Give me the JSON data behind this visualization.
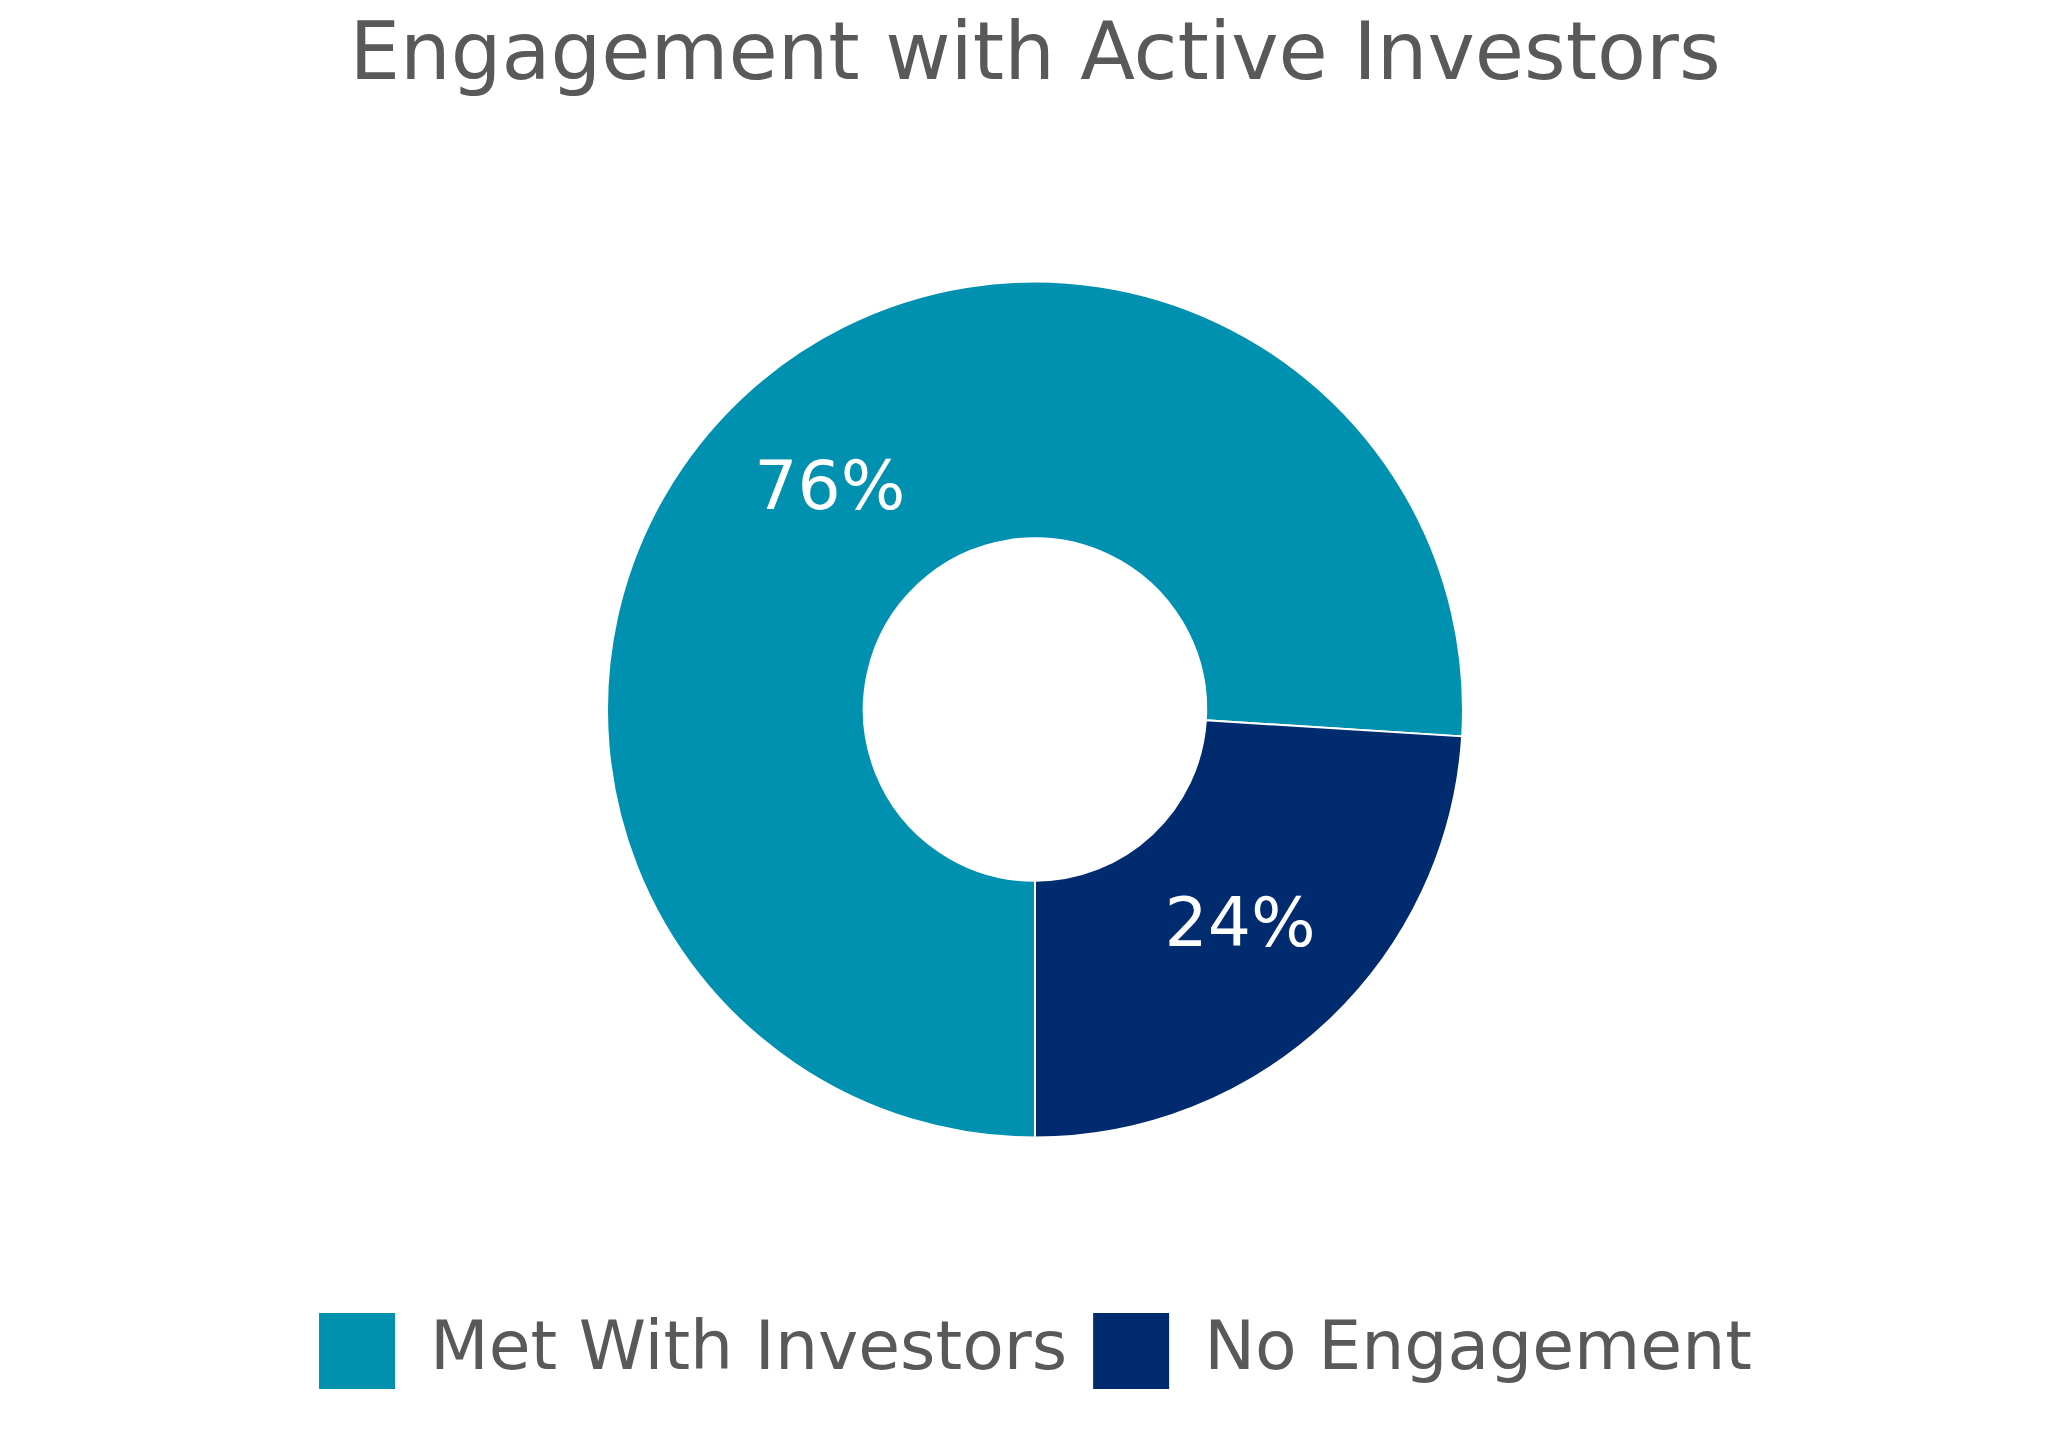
{
  "chart_data": {
    "type": "donut",
    "title": "Engagement with Active Investors",
    "categories": [
      "Met With Investors",
      "No Engagement"
    ],
    "values": [
      76,
      24
    ],
    "colors": [
      "#0090b0",
      "#002b6e"
    ],
    "value_labels": [
      "76%",
      "24%"
    ],
    "legend": "bottom"
  }
}
